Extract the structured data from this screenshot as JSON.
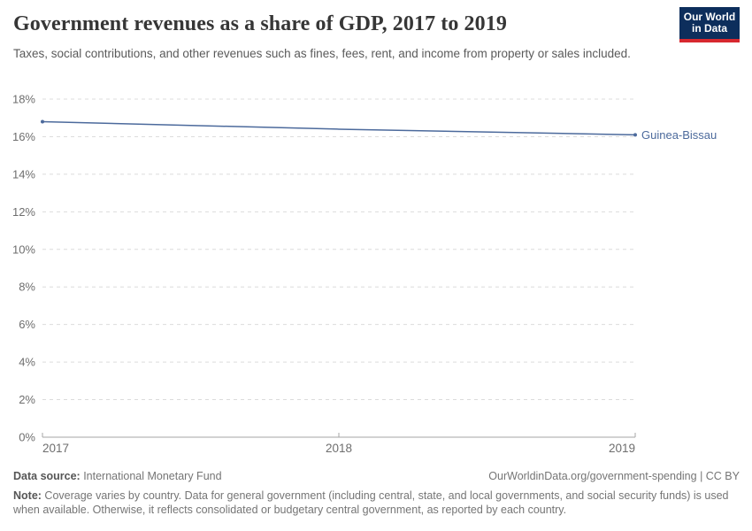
{
  "header": {
    "title": "Government revenues as a share of GDP, 2017 to 2019",
    "subtitle": "Taxes, social contributions, and other revenues such as fines, fees, rent, and income from property or sales included.",
    "logo": {
      "line1": "Our World",
      "line2": "in Data",
      "background_color": "#0d2e5c",
      "accent_color": "#d7282f"
    }
  },
  "chart_data": {
    "type": "line",
    "title": "Government revenues as a share of GDP, 2017 to 2019",
    "x": [
      2017,
      2018,
      2019
    ],
    "xticks": [
      2017,
      2018,
      2019
    ],
    "series": [
      {
        "name": "Guinea-Bissau",
        "values": [
          16.8,
          16.4,
          16.1
        ],
        "color": "#4c6a9c"
      }
    ],
    "ylim": [
      0,
      18
    ],
    "yticks": [
      0,
      2,
      4,
      6,
      8,
      10,
      12,
      14,
      16,
      18
    ],
    "ytick_suffix": "%",
    "grid": true,
    "gridline_color": "#dcdcdc",
    "axis_color": "#a6a6a6",
    "tick_label_color": "#6e6e6e",
    "legend_position": "end-of-line label"
  },
  "footer": {
    "source_label": "Data source:",
    "source_value": " International Monetary Fund",
    "link": "OurWorldinData.org/government-spending | CC BY",
    "note_label": "Note:",
    "note_value": " Coverage varies by country. Data for general government (including central, state, and local governments, and social security funds) is used when available. Otherwise, it reflects consolidated or budgetary central government, as reported by each country."
  }
}
